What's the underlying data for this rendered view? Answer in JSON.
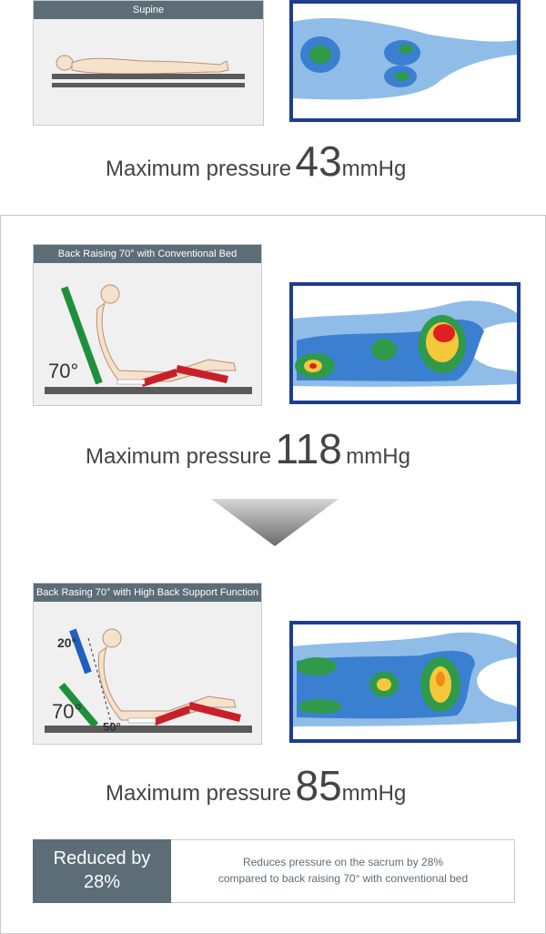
{
  "panel1": {
    "title": "Supine",
    "pressure_label": "Maximum pressure",
    "pressure_value": "43",
    "pressure_unit": "mmHg"
  },
  "panel2": {
    "title": "Back Raising 70° with Conventional Bed",
    "angle_label": "70°",
    "pressure_label": "Maximum pressure",
    "pressure_value": "118",
    "pressure_unit": "mmHg"
  },
  "panel3": {
    "title": "Back Rasing 70° with High Back Support Function",
    "angle_label": "70°",
    "upper_angle_label": "20°",
    "lower_angle_label": "50°",
    "pressure_label": "Maximum pressure",
    "pressure_value": "85",
    "pressure_unit": "mmHg"
  },
  "summary": {
    "badge_line1": "Reduced by",
    "badge_line2": "28%",
    "text_line1": "Reduces pressure on the sacrum by 28%",
    "text_line2": "compared to back raising 70° with conventional bed"
  },
  "colors": {
    "header_bar": "#5c6d78",
    "heatmap_border": "#1d3d8f",
    "conventional_back_section": "#1e8f3a",
    "high_back_support_upper": "#1f5fbf",
    "leg_sections": "#c8202a"
  }
}
